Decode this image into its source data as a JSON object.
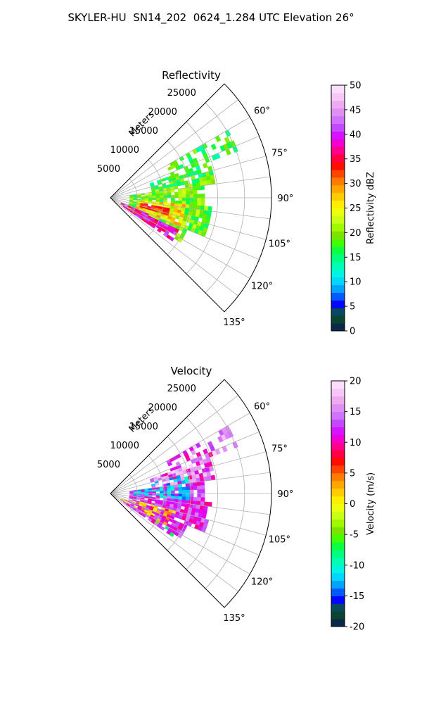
{
  "figure": {
    "title": "SKYLER-HU  SN14_202  0624_1.284 UTC Elevation 26°"
  },
  "chart_data": [
    {
      "type": "heatmap",
      "projection": "polar-sector",
      "title": "Reflectivity",
      "range_label": "Meters",
      "range_ticks": [
        5000,
        10000,
        15000,
        20000,
        25000
      ],
      "range_max": 30000,
      "azimuth_ticks": [
        "60°",
        "75°",
        "90°",
        "105°",
        "120°",
        "135°"
      ],
      "azimuth_range": [
        45,
        135
      ],
      "grid": true,
      "colorbar": {
        "label": "Reflectivity dBZ",
        "min": 0,
        "max": 50,
        "ticks": [
          0,
          5,
          10,
          15,
          20,
          25,
          30,
          35,
          40,
          45,
          50
        ],
        "levels": 32,
        "colors": [
          "#0a1a5c",
          "#0b3a2c",
          "#0a5a3a",
          "#0000ff",
          "#0060ff",
          "#00b4ff",
          "#00e6ff",
          "#00ffc8",
          "#00ff90",
          "#00ff50",
          "#40ff00",
          "#80e000",
          "#a8ff00",
          "#d8ff20",
          "#ffff00",
          "#ffd800",
          "#ffb000",
          "#ff8000",
          "#ff4000",
          "#ff0000",
          "#ff0060",
          "#ff00b0",
          "#e000ff",
          "#c040ff",
          "#d070ff",
          "#e090f0",
          "#f0b0f0",
          "#f8d0f8",
          "#ffe8ff"
        ]
      },
      "echo": "reflectivity: mostly 12–25 dBZ (green/yellow) with 30–45 dBZ cores (red/magenta) near 100–120° at 3000–16000 m"
    },
    {
      "type": "heatmap",
      "projection": "polar-sector",
      "title": "Velocity",
      "range_label": "Meters",
      "range_ticks": [
        5000,
        10000,
        15000,
        20000,
        25000
      ],
      "range_max": 30000,
      "azimuth_ticks": [
        "60°",
        "75°",
        "90°",
        "105°",
        "120°",
        "135°"
      ],
      "azimuth_range": [
        45,
        135
      ],
      "grid": true,
      "colorbar": {
        "label": "Velocity (m/s)",
        "min": -20,
        "max": 20,
        "ticks": [
          -20,
          -15,
          -10,
          -5,
          0,
          5,
          10,
          15,
          20
        ],
        "levels": 32,
        "colors": [
          "#0a1a5c",
          "#0b3a2c",
          "#0a5a3a",
          "#0000ff",
          "#0060ff",
          "#00b4ff",
          "#00e6ff",
          "#00ffc8",
          "#00ff90",
          "#00ff50",
          "#40ff00",
          "#80e000",
          "#a8ff00",
          "#d8ff20",
          "#ffff00",
          "#ffd800",
          "#ffb000",
          "#ff8000",
          "#ff4000",
          "#ff0000",
          "#ff0060",
          "#ff00b0",
          "#e000ff",
          "#c040ff",
          "#d070ff",
          "#e090f0",
          "#f0b0f0",
          "#f8d0f8",
          "#ffe8ff"
        ]
      },
      "echo": "velocity: mostly +8 to +15 m/s (red/magenta), with -10 to -15 m/s (cyan/blue) near 75–95° at 5000–15000 m and 0 to +5 m/s (yellow) near 105–120°"
    }
  ]
}
